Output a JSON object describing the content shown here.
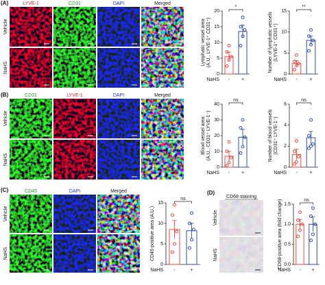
{
  "panels": [
    {
      "label": "(A)",
      "columns": [
        "LYVE-1",
        "CD31",
        "DAPI",
        "Merged"
      ],
      "rows": [
        "Vehicle",
        "NaHS"
      ]
    },
    {
      "label": "(B)",
      "columns": [
        "CD31",
        "LYVE-1",
        "DAPI",
        "Merged"
      ],
      "rows": [
        "Vehicle",
        "NaHS"
      ]
    },
    {
      "label": "(C)",
      "columns": [
        "CD45",
        "DAPI",
        "Merged"
      ],
      "rows": [
        "Vehicle",
        "NaHS"
      ]
    },
    {
      "label": "(D)",
      "columns": [
        "CD68 staining"
      ],
      "rows": [
        "Vehicle",
        "NaHS"
      ]
    }
  ],
  "chart_data": [
    {
      "type": "bar",
      "ylabel": [
        "Lymphatic vessel area",
        "(A.U., LYVE-1⁺ CD31⁺)"
      ],
      "x_label": "NaHS",
      "categories": [
        "-",
        "+"
      ],
      "colors": [
        "#e8473d",
        "#2c4ca8"
      ],
      "values": [
        5.5,
        13.5
      ],
      "errors": [
        1.4,
        2.0
      ],
      "points": [
        [
          2.5,
          4.5,
          5.5,
          7,
          9
        ],
        [
          9,
          12,
          14,
          15,
          18
        ]
      ],
      "significance": "*",
      "ylim": [
        0,
        20
      ],
      "yticks": [
        0,
        5,
        10,
        15,
        20
      ]
    },
    {
      "type": "bar",
      "ylabel": [
        "Number of lymphatic vessels",
        "(LYVE-1⁺ CD31⁺)"
      ],
      "x_label": "NaHS",
      "categories": [
        "-",
        "+"
      ],
      "colors": [
        "#e8473d",
        "#2c4ca8"
      ],
      "values": [
        2.5,
        8
      ],
      "errors": [
        0.7,
        1.0
      ],
      "points": [
        [
          1,
          2,
          2.5,
          3,
          4.5
        ],
        [
          5.5,
          7,
          8,
          9,
          10.5
        ]
      ],
      "significance": "**",
      "ylim": [
        0,
        15
      ],
      "yticks": [
        0,
        5,
        10,
        15
      ]
    },
    {
      "type": "bar",
      "ylabel": [
        "Blood vessel area",
        "(A.U., CD31⁺ LYVE-1⁻)"
      ],
      "x_label": "NaHS",
      "categories": [
        "-",
        "+"
      ],
      "colors": [
        "#e8473d",
        "#2c4ca8"
      ],
      "values": [
        7,
        19
      ],
      "errors": [
        3,
        5
      ],
      "points": [
        [
          1,
          3,
          6,
          10,
          16
        ],
        [
          9,
          13,
          19,
          25,
          30
        ]
      ],
      "significance": "ns",
      "ylim": [
        0,
        40
      ],
      "yticks": [
        0,
        10,
        20,
        30,
        40
      ]
    },
    {
      "type": "bar",
      "ylabel": [
        "Number of blood vessels",
        "(CD31⁺ LYVE-1⁻)"
      ],
      "x_label": "NaHS",
      "categories": [
        "-",
        "+"
      ],
      "colors": [
        "#e8473d",
        "#2c4ca8"
      ],
      "values": [
        1.2,
        2.8
      ],
      "errors": [
        0.5,
        0.6
      ],
      "points": [
        [
          0.3,
          0.5,
          1,
          1.5,
          2.5
        ],
        [
          1.8,
          2,
          2.2,
          3,
          4.5
        ]
      ],
      "significance": "ns",
      "ylim": [
        0,
        6
      ],
      "yticks": [
        0,
        2,
        4,
        6
      ]
    },
    {
      "type": "bar",
      "ylabel": [
        "CD45-positive area (A.U.)"
      ],
      "x_label": "NaHS",
      "categories": [
        "-",
        "+"
      ],
      "colors": [
        "#e8473d",
        "#2c4ca8"
      ],
      "values": [
        8.5,
        8.2
      ],
      "errors": [
        2.2,
        1.8
      ],
      "points": [
        [
          3,
          5,
          8,
          12,
          14.5
        ],
        [
          4,
          6,
          8.5,
          10,
          12.5
        ]
      ],
      "significance": "ns",
      "ylim": [
        0,
        15
      ],
      "yticks": [
        0,
        5,
        10,
        15
      ]
    },
    {
      "type": "bar",
      "ylabel": [
        "CD68-positive area (fold change)"
      ],
      "x_label": "NaHS",
      "categories": [
        "-",
        "+"
      ],
      "colors": [
        "#e8473d",
        "#2c4ca8"
      ],
      "values": [
        1.0,
        1.0
      ],
      "errors": [
        0.12,
        0.18
      ],
      "points": [
        [
          0.7,
          0.85,
          1.0,
          1.1,
          1.3
        ],
        [
          0.6,
          0.75,
          1.0,
          1.2,
          1.4
        ]
      ],
      "significance": "ns",
      "ylim": [
        0,
        1.5
      ],
      "yticks": [
        {
          "value": 0,
          "label": "0.0"
        },
        {
          "value": 0.5,
          "label": "0.5"
        },
        {
          "value": 1,
          "label": "1.0"
        },
        {
          "value": 1.5,
          "label": "1.5"
        }
      ]
    }
  ]
}
